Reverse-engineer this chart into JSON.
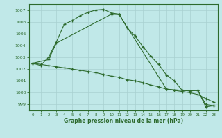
{
  "bg_color": "#c0e8e8",
  "line_color": "#2d6a2d",
  "grid_color": "#a8d0d0",
  "xlabel": "Graphe pression niveau de la mer (hPa)",
  "ylim": [
    998.5,
    1007.5
  ],
  "xlim": [
    -0.5,
    23.5
  ],
  "yticks": [
    999,
    1000,
    1001,
    1002,
    1003,
    1004,
    1005,
    1006,
    1007
  ],
  "xticks": [
    0,
    1,
    2,
    3,
    4,
    5,
    6,
    7,
    8,
    9,
    10,
    11,
    12,
    13,
    14,
    15,
    16,
    17,
    18,
    19,
    20,
    21,
    22,
    23
  ],
  "line1_x": [
    0,
    1,
    2,
    3,
    4,
    5,
    6,
    7,
    8,
    9,
    10,
    11,
    12,
    13,
    14,
    15,
    16,
    17,
    18,
    19,
    20,
    21,
    22,
    23
  ],
  "line1_y": [
    1002.5,
    1002.3,
    1003.0,
    1004.3,
    1005.8,
    1006.1,
    1006.5,
    1006.8,
    1007.0,
    1007.05,
    1006.75,
    1006.65,
    1005.5,
    1004.8,
    1003.9,
    1003.1,
    1002.4,
    1001.5,
    1001.0,
    1000.2,
    1000.15,
    1000.2,
    999.0,
    998.9
  ],
  "line2_x": [
    0,
    1,
    2,
    3,
    4,
    5,
    6,
    7,
    8,
    9,
    10,
    11,
    12,
    13,
    14,
    15,
    16,
    17,
    18,
    19,
    20,
    21,
    22,
    23
  ],
  "line2_y": [
    1002.5,
    1002.4,
    1002.3,
    1002.2,
    1002.1,
    1002.0,
    1001.9,
    1001.8,
    1001.7,
    1001.55,
    1001.4,
    1001.3,
    1001.1,
    1001.0,
    1000.85,
    1000.65,
    1000.5,
    1000.3,
    1000.2,
    1000.1,
    1000.0,
    999.85,
    999.5,
    999.2
  ],
  "line3_x": [
    0,
    2,
    3,
    10,
    11,
    17,
    20,
    21,
    22,
    23
  ],
  "line3_y": [
    1002.5,
    1002.8,
    1004.2,
    1006.65,
    1006.6,
    1000.3,
    1000.15,
    1000.2,
    998.8,
    998.9
  ]
}
